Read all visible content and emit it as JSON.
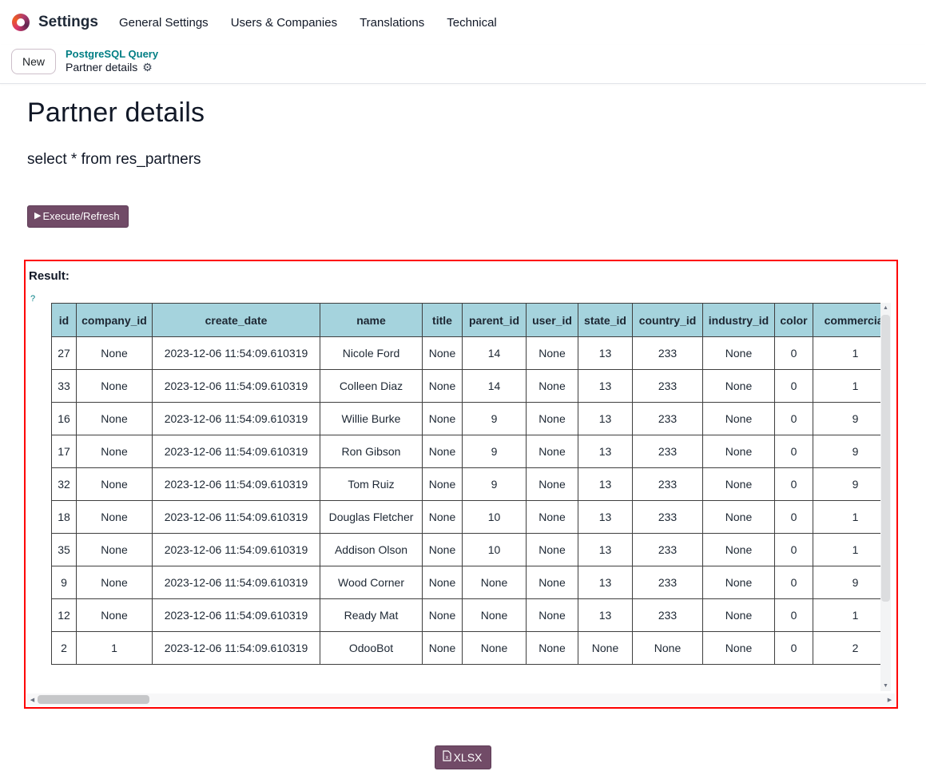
{
  "navbar": {
    "app_name": "Settings",
    "menus": [
      "General Settings",
      "Users & Companies",
      "Translations",
      "Technical"
    ]
  },
  "control_panel": {
    "new_button": "New",
    "breadcrumb_parent": "PostgreSQL Query",
    "breadcrumb_current": "Partner details"
  },
  "page": {
    "title": "Partner details",
    "query_text": "select * from res_partners",
    "execute_button": "Execute/Refresh",
    "result_label": "Result:",
    "help_marker": "?",
    "xlsx_button": "XLSX"
  },
  "colors": {
    "accent_teal": "#017e84",
    "primary_button": "#714b67",
    "table_header_bg": "#a5d3dd",
    "result_border": "#fe0000"
  },
  "icons": {
    "odoo_logo": "odoo-logo",
    "gear": "gear-icon",
    "play": "play-icon",
    "xlsx_file": "xlsx-file-icon"
  },
  "table": {
    "columns": [
      "id",
      "company_id",
      "create_date",
      "name",
      "title",
      "parent_id",
      "user_id",
      "state_id",
      "country_id",
      "industry_id",
      "color",
      "commercial"
    ],
    "rows": [
      [
        "27",
        "None",
        "2023-12-06 11:54:09.610319",
        "Nicole Ford",
        "None",
        "14",
        "None",
        "13",
        "233",
        "None",
        "0",
        "1"
      ],
      [
        "33",
        "None",
        "2023-12-06 11:54:09.610319",
        "Colleen Diaz",
        "None",
        "14",
        "None",
        "13",
        "233",
        "None",
        "0",
        "1"
      ],
      [
        "16",
        "None",
        "2023-12-06 11:54:09.610319",
        "Willie Burke",
        "None",
        "9",
        "None",
        "13",
        "233",
        "None",
        "0",
        "9"
      ],
      [
        "17",
        "None",
        "2023-12-06 11:54:09.610319",
        "Ron Gibson",
        "None",
        "9",
        "None",
        "13",
        "233",
        "None",
        "0",
        "9"
      ],
      [
        "32",
        "None",
        "2023-12-06 11:54:09.610319",
        "Tom Ruiz",
        "None",
        "9",
        "None",
        "13",
        "233",
        "None",
        "0",
        "9"
      ],
      [
        "18",
        "None",
        "2023-12-06 11:54:09.610319",
        "Douglas Fletcher",
        "None",
        "10",
        "None",
        "13",
        "233",
        "None",
        "0",
        "1"
      ],
      [
        "35",
        "None",
        "2023-12-06 11:54:09.610319",
        "Addison Olson",
        "None",
        "10",
        "None",
        "13",
        "233",
        "None",
        "0",
        "1"
      ],
      [
        "9",
        "None",
        "2023-12-06 11:54:09.610319",
        "Wood Corner",
        "None",
        "None",
        "None",
        "13",
        "233",
        "None",
        "0",
        "9"
      ],
      [
        "12",
        "None",
        "2023-12-06 11:54:09.610319",
        "Ready Mat",
        "None",
        "None",
        "None",
        "13",
        "233",
        "None",
        "0",
        "1"
      ],
      [
        "2",
        "1",
        "2023-12-06 11:54:09.610319",
        "OdooBot",
        "None",
        "None",
        "None",
        "None",
        "None",
        "None",
        "0",
        "2"
      ]
    ]
  }
}
